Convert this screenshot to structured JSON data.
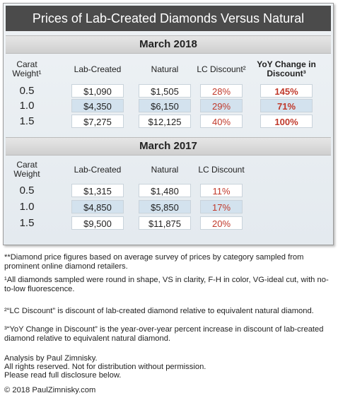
{
  "title": "Prices of Lab-Created Diamonds Versus Natural",
  "sections": [
    {
      "heading": "March 2018",
      "columns": [
        "Carat Weight¹",
        "Lab-Created",
        "Natural",
        "LC Discount²",
        "YoY Change in Discount³"
      ],
      "rows": [
        [
          "0.5",
          "$1,090",
          "$1,505",
          "28%",
          "145%"
        ],
        [
          "1.0",
          "$4,350",
          "$6,150",
          "29%",
          "71%"
        ],
        [
          "1.5",
          "$7,275",
          "$12,125",
          "40%",
          "100%"
        ]
      ]
    },
    {
      "heading": "March 2017",
      "columns": [
        "Carat Weight",
        "Lab-Created",
        "Natural",
        "LC Discount"
      ],
      "rows": [
        [
          "0.5",
          "$1,315",
          "$1,480",
          "11%"
        ],
        [
          "1.0",
          "$4,850",
          "$5,850",
          "17%"
        ],
        [
          "1.5",
          "$9,500",
          "$11,875",
          "20%"
        ]
      ]
    }
  ],
  "notes": [
    "**Diamond price figures based on average survey of prices by category sampled from prominent online diamond retailers.",
    "¹All diamonds sampled were round in shape, VS in clarity, F-H in color, VG-ideal cut, with no-to-low fluorescence.",
    "²“LC Discount” is discount of lab-created diamond relative to equivalent natural diamond.",
    "³“YoY Change in Discount” is the year-over-year percent increase in discount of lab-created diamond relative to equivalent natural diamond."
  ],
  "credits": [
    "Analysis by Paul Zimnisky.",
    "All rights reserved. Not for distribution without permission.",
    "Please read full disclosure below."
  ],
  "copyright": "© 2018 PaulZimnisky.com"
}
